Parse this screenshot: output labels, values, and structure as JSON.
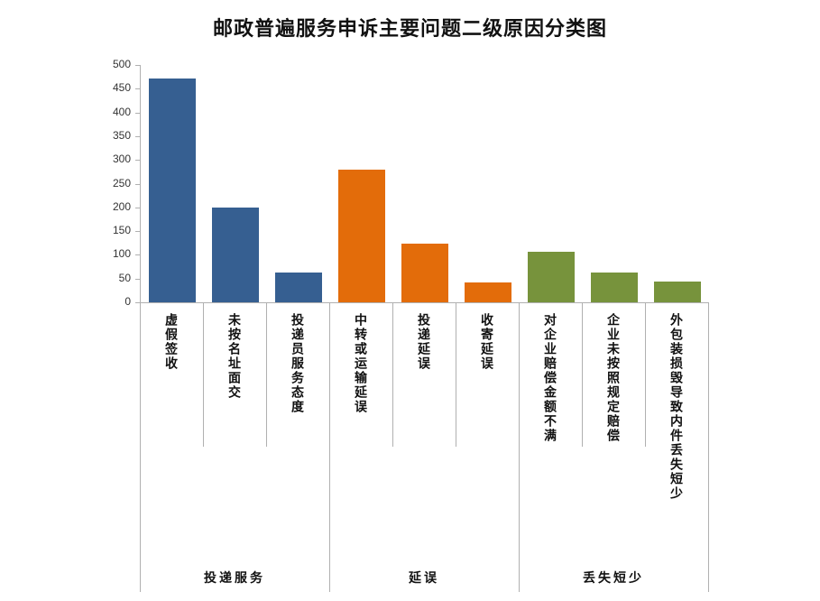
{
  "chart_data": {
    "type": "bar",
    "title": "邮政普遍服务申诉主要问题二级原因分类图",
    "xlabel": "",
    "ylabel": "",
    "ylim": [
      0,
      500
    ],
    "yticks": [
      0,
      50,
      100,
      150,
      200,
      250,
      300,
      350,
      400,
      450,
      500
    ],
    "grid": false,
    "legend": "none",
    "categories": [
      "虚假签收",
      "未按名址面交",
      "投递员服务态度",
      "中转或运输延误",
      "投递延误",
      "收寄延误",
      "对企业赔偿金额不满",
      "企业未按照规定赔偿",
      "外包装损毁导致内件丢失短少"
    ],
    "values": [
      471,
      200,
      63,
      279,
      124,
      42,
      107,
      63,
      44
    ],
    "groups": [
      {
        "name": "投递服务",
        "categories": [
          "虚假签收",
          "未按名址面交",
          "投递员服务态度"
        ],
        "color": "#365f91"
      },
      {
        "name": "延误",
        "categories": [
          "中转或运输延误",
          "投递延误",
          "收寄延误"
        ],
        "color": "#e36c0a"
      },
      {
        "name": "丢失短少",
        "categories": [
          "对企业赔偿金额不满",
          "企业未按照规定赔偿",
          "外包装损毁导致内件丢失短少"
        ],
        "color": "#77933c"
      }
    ],
    "bar_colors": [
      "#365f91",
      "#365f91",
      "#365f91",
      "#e36c0a",
      "#e36c0a",
      "#e36c0a",
      "#77933c",
      "#77933c",
      "#77933c"
    ]
  }
}
